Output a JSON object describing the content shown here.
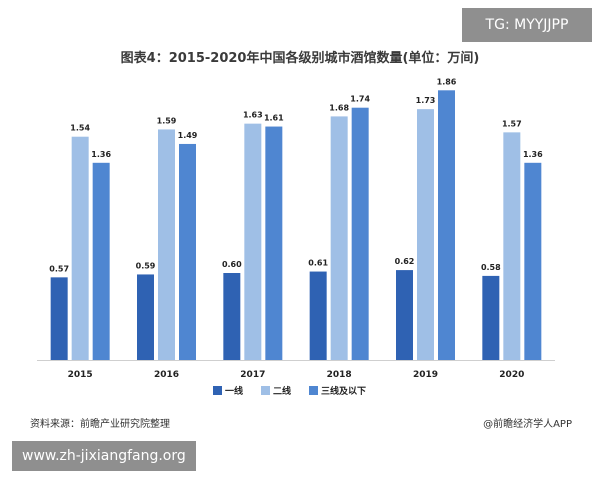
{
  "overlay": {
    "tag": "TG: MYYJJPP",
    "url": "www.zh-jixiangfang.org"
  },
  "footer": {
    "source": "资料来源：前瞻产业研究院整理",
    "publisher": "@前瞻经济学人APP"
  },
  "chart_data": {
    "type": "bar",
    "title": "图表4：2015-2020年中国各级别城市酒馆数量(单位：万间)",
    "xlabel": "",
    "ylabel": "",
    "ylim": [
      0,
      2
    ],
    "grid": false,
    "legend_position": "bottom",
    "categories": [
      "2015",
      "2016",
      "2017",
      "2018",
      "2019",
      "2020"
    ],
    "series": [
      {
        "name": "一线",
        "color": "#2f62b3",
        "values": [
          0.57,
          0.59,
          0.6,
          0.61,
          0.62,
          0.58
        ]
      },
      {
        "name": "二线",
        "color": "#9fbfe6",
        "values": [
          1.54,
          1.59,
          1.63,
          1.68,
          1.73,
          1.57
        ]
      },
      {
        "name": "三线及以下",
        "color": "#4f86d1",
        "values": [
          1.36,
          1.49,
          1.61,
          1.74,
          1.86,
          1.36
        ]
      }
    ]
  }
}
